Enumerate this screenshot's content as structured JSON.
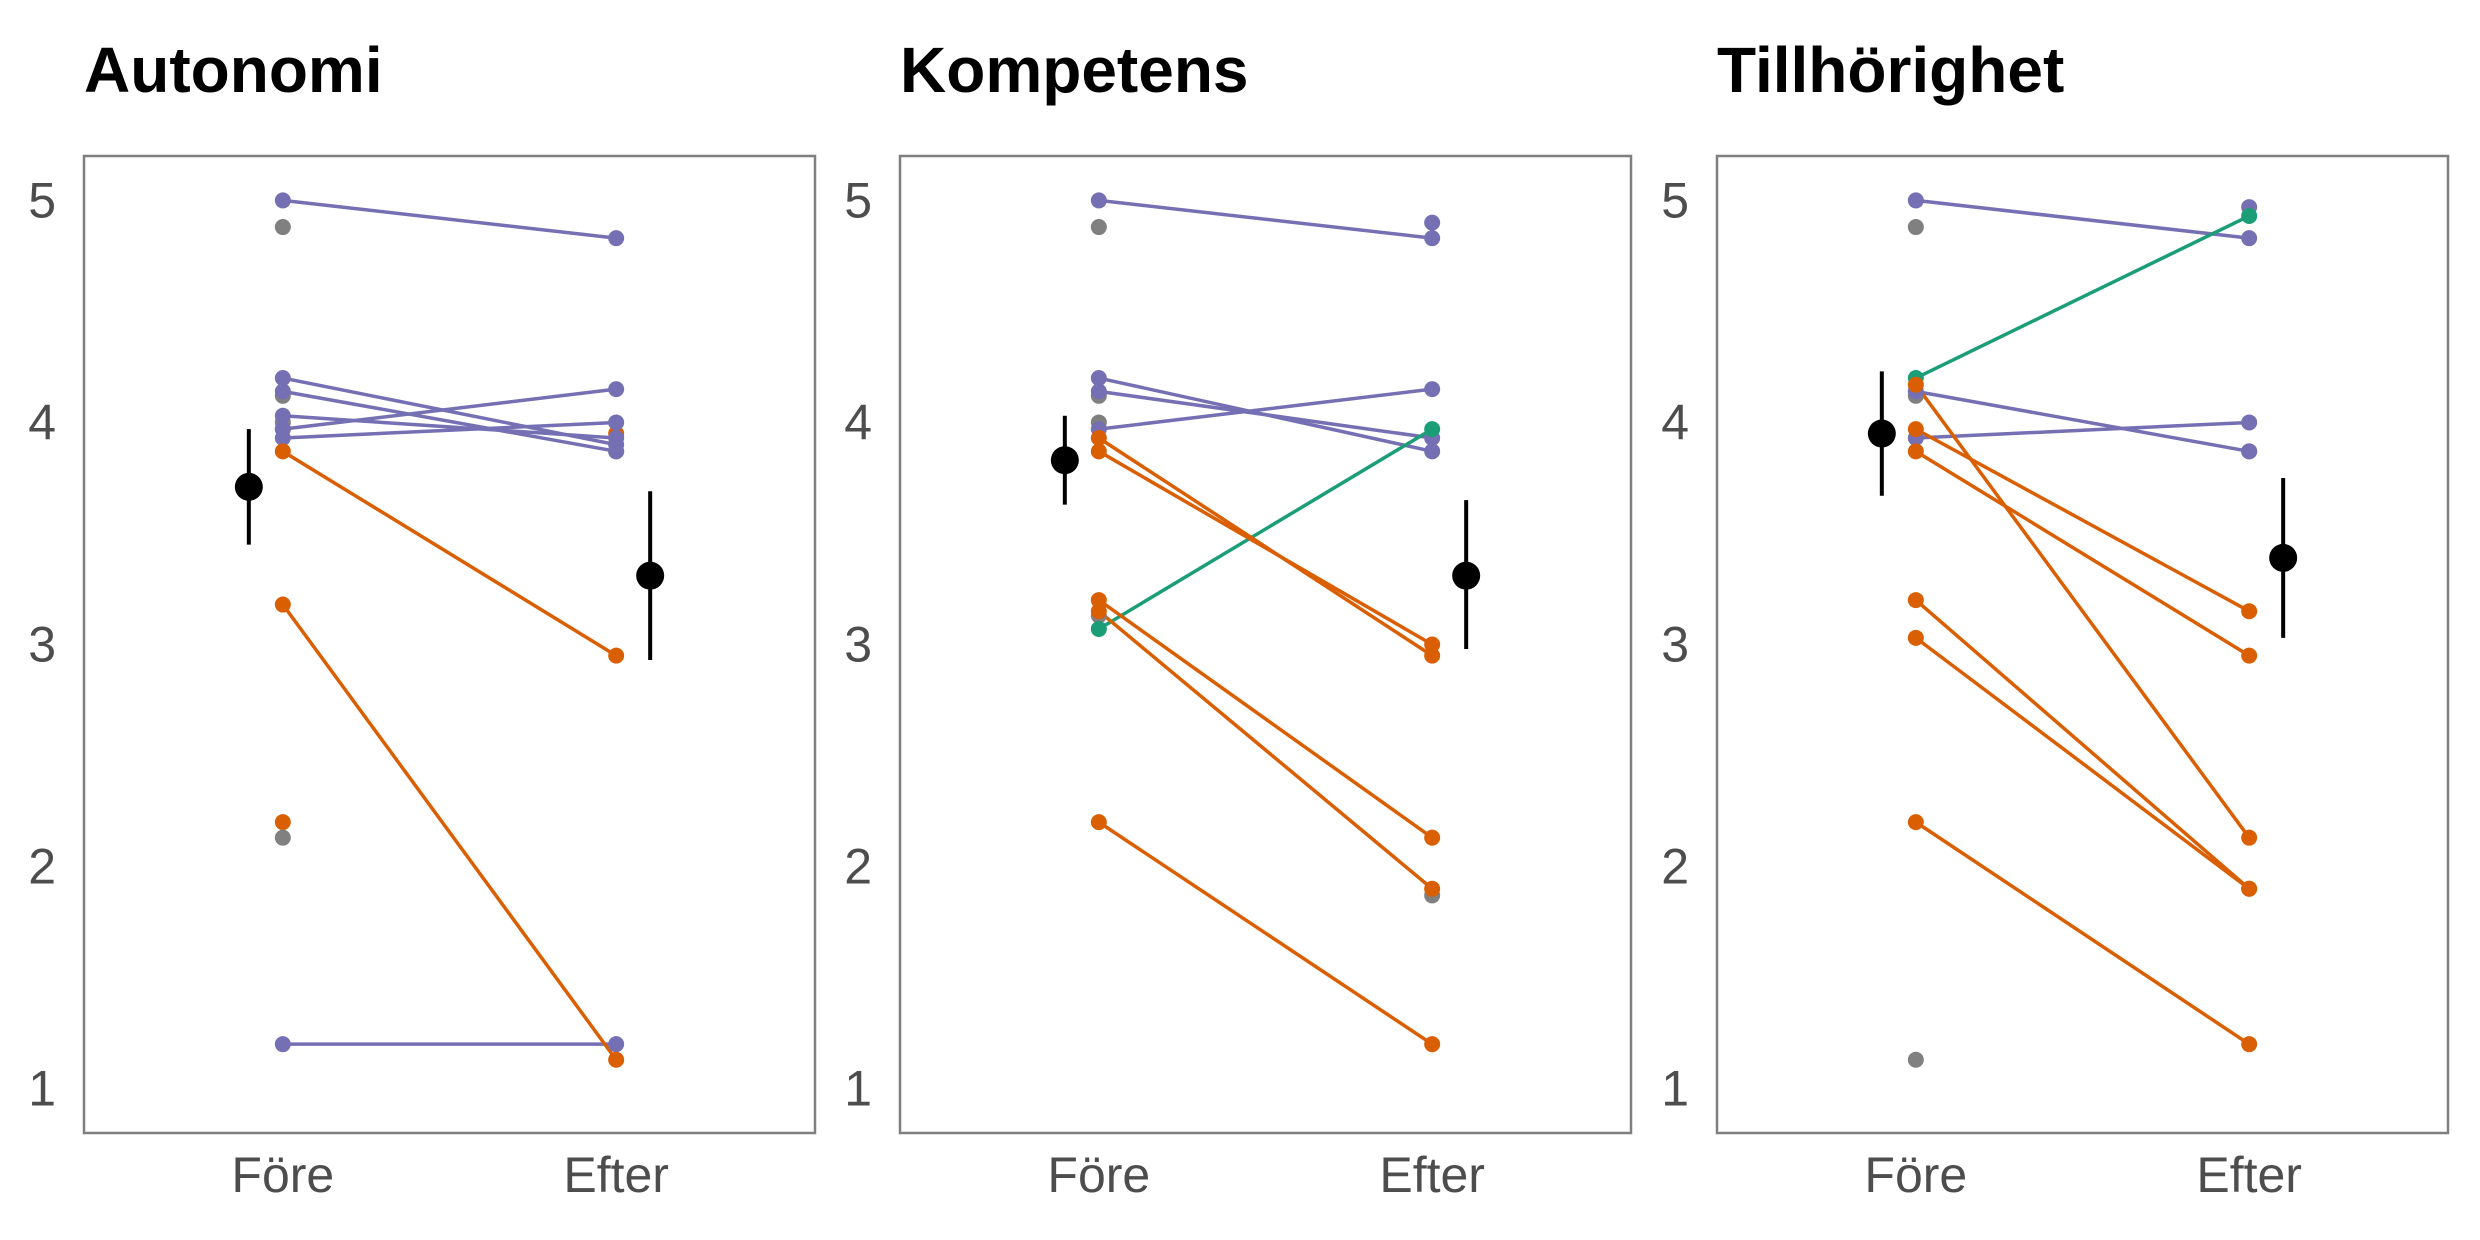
{
  "colors": {
    "decreased": "#d95f02",
    "increased": "#1b9e77",
    "stable": "#7570b3",
    "unpaired": "#808080",
    "mean": "#000000",
    "axis_text": "#4d4d4d",
    "frame": "#7f7f7f"
  },
  "chart_data": [
    {
      "type": "scatter",
      "title": "Autonomi",
      "categories": [
        "Före",
        "Efter"
      ],
      "ylim": [
        0.8,
        5.2
      ],
      "yticks": [
        1,
        2,
        3,
        4,
        5
      ],
      "pairs": [
        {
          "before": 5.0,
          "after": 4.83,
          "group": "stable"
        },
        {
          "before": 4.2,
          "after": 3.9,
          "group": "stable"
        },
        {
          "before": 4.14,
          "after": 3.87,
          "group": "stable"
        },
        {
          "before": 4.03,
          "after": 3.93,
          "group": "stable"
        },
        {
          "before": 3.97,
          "after": 4.15,
          "group": "stable"
        },
        {
          "before": 3.93,
          "after": 4.0,
          "group": "stable"
        },
        {
          "before": 1.2,
          "after": 1.2,
          "group": "stable"
        },
        {
          "before": 3.87,
          "after": 2.95,
          "group": "decreased"
        },
        {
          "before": 3.18,
          "after": 1.13,
          "group": "decreased"
        }
      ],
      "unpaired": [
        {
          "category": "Före",
          "value": 4.88,
          "group": "unpaired"
        },
        {
          "category": "Före",
          "value": 4.12,
          "group": "unpaired"
        },
        {
          "category": "Före",
          "value": 4.0,
          "group": "unpaired"
        },
        {
          "category": "Före",
          "value": 3.97,
          "group": "unpaired"
        },
        {
          "category": "Före",
          "value": 2.2,
          "group": "decreased"
        },
        {
          "category": "Före",
          "value": 2.13,
          "group": "unpaired"
        },
        {
          "category": "Efter",
          "value": 3.87,
          "group": "unpaired"
        },
        {
          "category": "Efter",
          "value": 3.95,
          "group": "decreased"
        }
      ],
      "means": [
        {
          "category": "Före",
          "mean": 3.71,
          "lower": 3.45,
          "upper": 3.97
        },
        {
          "category": "Efter",
          "mean": 3.31,
          "lower": 2.93,
          "upper": 3.69
        }
      ]
    },
    {
      "type": "scatter",
      "title": "Kompetens",
      "categories": [
        "Före",
        "Efter"
      ],
      "ylim": [
        0.8,
        5.2
      ],
      "yticks": [
        1,
        2,
        3,
        4,
        5
      ],
      "pairs": [
        {
          "before": 5.0,
          "after": 4.83,
          "group": "stable"
        },
        {
          "before": 4.2,
          "after": 3.87,
          "group": "stable"
        },
        {
          "before": 4.14,
          "after": 3.93,
          "group": "stable"
        },
        {
          "before": 3.97,
          "after": 4.15,
          "group": "stable"
        },
        {
          "before": 3.07,
          "after": 3.97,
          "group": "increased"
        },
        {
          "before": 3.93,
          "after": 2.95,
          "group": "decreased"
        },
        {
          "before": 3.87,
          "after": 3.0,
          "group": "decreased"
        },
        {
          "before": 3.2,
          "after": 2.13,
          "group": "decreased"
        },
        {
          "before": 3.15,
          "after": 1.9,
          "group": "decreased"
        },
        {
          "before": 2.2,
          "after": 1.2,
          "group": "decreased"
        }
      ],
      "unpaired": [
        {
          "category": "Före",
          "value": 4.88,
          "group": "unpaired"
        },
        {
          "category": "Före",
          "value": 4.12,
          "group": "unpaired"
        },
        {
          "category": "Före",
          "value": 4.0,
          "group": "unpaired"
        },
        {
          "category": "Före",
          "value": 3.13,
          "group": "unpaired"
        },
        {
          "category": "Efter",
          "value": 4.9,
          "group": "stable"
        },
        {
          "category": "Efter",
          "value": 1.87,
          "group": "unpaired"
        }
      ],
      "means": [
        {
          "category": "Före",
          "mean": 3.83,
          "lower": 3.63,
          "upper": 4.03
        },
        {
          "category": "Efter",
          "mean": 3.31,
          "lower": 2.98,
          "upper": 3.65
        }
      ]
    },
    {
      "type": "scatter",
      "title": "Tillhörighet",
      "categories": [
        "Före",
        "Efter"
      ],
      "ylim": [
        0.8,
        5.2
      ],
      "yticks": [
        1,
        2,
        3,
        4,
        5
      ],
      "pairs": [
        {
          "before": 5.0,
          "after": 4.83,
          "group": "stable"
        },
        {
          "before": 4.14,
          "after": 3.87,
          "group": "stable"
        },
        {
          "before": 3.93,
          "after": 4.0,
          "group": "stable"
        },
        {
          "before": 4.2,
          "after": 4.93,
          "group": "increased"
        },
        {
          "before": 4.17,
          "after": 2.13,
          "group": "decreased"
        },
        {
          "before": 3.97,
          "after": 3.15,
          "group": "decreased"
        },
        {
          "before": 3.87,
          "after": 2.95,
          "group": "decreased"
        },
        {
          "before": 3.2,
          "after": 1.9,
          "group": "decreased"
        },
        {
          "before": 3.03,
          "after": 1.9,
          "group": "decreased"
        },
        {
          "before": 2.2,
          "after": 1.2,
          "group": "decreased"
        }
      ],
      "unpaired": [
        {
          "category": "Före",
          "value": 4.88,
          "group": "unpaired"
        },
        {
          "category": "Före",
          "value": 4.12,
          "group": "unpaired"
        },
        {
          "category": "Före",
          "value": 1.13,
          "group": "unpaired"
        },
        {
          "category": "Efter",
          "value": 4.97,
          "group": "stable"
        },
        {
          "category": "Efter",
          "value": 3.87,
          "group": "unpaired"
        }
      ],
      "means": [
        {
          "category": "Före",
          "mean": 3.95,
          "lower": 3.67,
          "upper": 4.23
        },
        {
          "category": "Efter",
          "mean": 3.39,
          "lower": 3.03,
          "upper": 3.75
        }
      ]
    }
  ]
}
